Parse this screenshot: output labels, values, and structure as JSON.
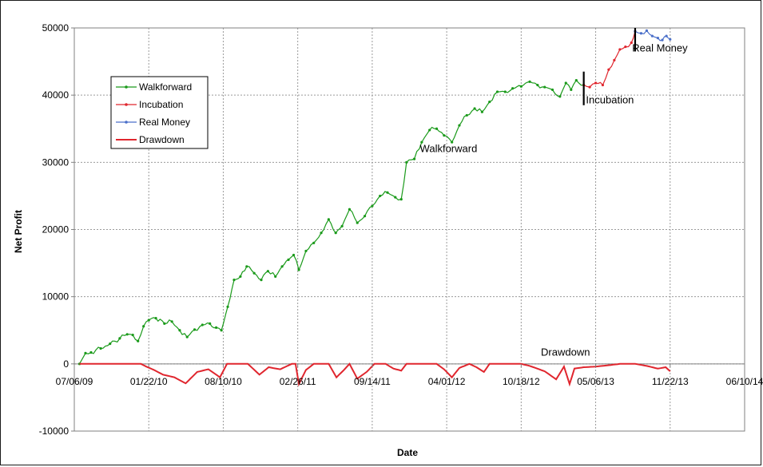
{
  "chart_data": {
    "type": "line",
    "xlabel": "Date",
    "ylabel": "Net Profit",
    "ylim": [
      -10000,
      50000
    ],
    "y_ticks": [
      -10000,
      0,
      10000,
      20000,
      30000,
      40000,
      50000
    ],
    "y_tick_labels": [
      "-10000",
      "0",
      "10000",
      "20000",
      "30000",
      "40000",
      "50000"
    ],
    "x_ticks": [
      "2009-07-06",
      "2010-01-22",
      "2010-08-10",
      "2011-02-26",
      "2011-09-14",
      "2012-04-01",
      "2012-10-18",
      "2013-05-06",
      "2013-11-22",
      "2014-06-10"
    ],
    "x_tick_labels": [
      "07/06/09",
      "01/22/10",
      "08/10/10",
      "02/26/11",
      "09/14/11",
      "04/01/12",
      "10/18/12",
      "05/06/13",
      "11/22/13",
      "06/10/14"
    ],
    "grid": true,
    "legend_position": "top-left",
    "legend": [
      "Walkforward",
      "Incubation",
      "Real Money",
      "Drawdown"
    ],
    "annotations": [
      {
        "text": "Walkforward",
        "x": "2012-01-20",
        "y": 31500
      },
      {
        "text": "Incubation",
        "x": "2013-04-10",
        "y": 38800
      },
      {
        "text": "Real Money",
        "x": "2013-08-12",
        "y": 46500
      },
      {
        "text": "Drawdown",
        "x": "2012-12-10",
        "y": 1200
      }
    ],
    "markers": [
      {
        "x": "2013-04-04",
        "y_from": 38500,
        "y_to": 43500
      },
      {
        "x": "2013-08-20",
        "y_from": 46500,
        "y_to": 50000
      }
    ],
    "series": [
      {
        "name": "Walkforward",
        "color": "#1a9a1a",
        "marker": true,
        "points": [
          [
            "2009-07-20",
            0
          ],
          [
            "2009-08-05",
            1600
          ],
          [
            "2009-08-20",
            1700
          ],
          [
            "2009-09-15",
            2300
          ],
          [
            "2009-10-10",
            3000
          ],
          [
            "2009-11-05",
            3800
          ],
          [
            "2009-11-25",
            4400
          ],
          [
            "2009-12-10",
            4300
          ],
          [
            "2009-12-24",
            3400
          ],
          [
            "2010-01-08",
            5600
          ],
          [
            "2010-01-22",
            6500
          ],
          [
            "2010-02-10",
            6800
          ],
          [
            "2010-03-05",
            6000
          ],
          [
            "2010-03-25",
            6300
          ],
          [
            "2010-04-15",
            5000
          ],
          [
            "2010-05-05",
            4000
          ],
          [
            "2010-05-25",
            5100
          ],
          [
            "2010-06-15",
            5800
          ],
          [
            "2010-07-05",
            6000
          ],
          [
            "2010-07-22",
            5400
          ],
          [
            "2010-08-05",
            5000
          ],
          [
            "2010-08-22",
            8500
          ],
          [
            "2010-09-08",
            12500
          ],
          [
            "2010-09-25",
            13000
          ],
          [
            "2010-10-12",
            14500
          ],
          [
            "2010-11-01",
            13500
          ],
          [
            "2010-11-20",
            12500
          ],
          [
            "2010-12-08",
            13800
          ],
          [
            "2010-12-28",
            13000
          ],
          [
            "2011-01-15",
            14500
          ],
          [
            "2011-02-01",
            15500
          ],
          [
            "2011-02-15",
            16200
          ],
          [
            "2011-03-01",
            14000
          ],
          [
            "2011-03-20",
            16800
          ],
          [
            "2011-04-10",
            18000
          ],
          [
            "2011-04-30",
            19500
          ],
          [
            "2011-05-20",
            21500
          ],
          [
            "2011-06-08",
            19500
          ],
          [
            "2011-06-25",
            20500
          ],
          [
            "2011-07-15",
            23000
          ],
          [
            "2011-08-05",
            21000
          ],
          [
            "2011-08-25",
            22000
          ],
          [
            "2011-09-14",
            23500
          ],
          [
            "2011-10-05",
            25000
          ],
          [
            "2011-10-25",
            25500
          ],
          [
            "2011-11-15",
            24800
          ],
          [
            "2011-12-01",
            24500
          ],
          [
            "2011-12-15",
            30000
          ],
          [
            "2012-01-05",
            30500
          ],
          [
            "2012-01-25",
            33000
          ],
          [
            "2012-02-15",
            34800
          ],
          [
            "2012-03-05",
            35000
          ],
          [
            "2012-03-25",
            34000
          ],
          [
            "2012-04-15",
            33000
          ],
          [
            "2012-05-05",
            35500
          ],
          [
            "2012-05-25",
            37000
          ],
          [
            "2012-06-15",
            38000
          ],
          [
            "2012-07-05",
            37500
          ],
          [
            "2012-07-25",
            39000
          ],
          [
            "2012-08-15",
            40500
          ],
          [
            "2012-09-05",
            40500
          ],
          [
            "2012-09-25",
            41000
          ],
          [
            "2012-10-18",
            41300
          ],
          [
            "2012-11-10",
            42000
          ],
          [
            "2012-12-01",
            41500
          ],
          [
            "2012-12-20",
            41200
          ],
          [
            "2013-01-10",
            40800
          ],
          [
            "2013-01-30",
            39800
          ],
          [
            "2013-02-15",
            41800
          ],
          [
            "2013-03-01",
            40800
          ],
          [
            "2013-03-15",
            42200
          ],
          [
            "2013-04-04",
            41500
          ]
        ]
      },
      {
        "name": "Incubation",
        "color": "#e0262e",
        "marker": true,
        "points": [
          [
            "2013-04-04",
            41500
          ],
          [
            "2013-04-20",
            41200
          ],
          [
            "2013-05-06",
            41800
          ],
          [
            "2013-05-25",
            41500
          ],
          [
            "2013-06-10",
            43800
          ],
          [
            "2013-06-25",
            45200
          ],
          [
            "2013-07-10",
            46800
          ],
          [
            "2013-07-25",
            47200
          ],
          [
            "2013-08-10",
            47800
          ],
          [
            "2013-08-20",
            49500
          ]
        ]
      },
      {
        "name": "Real Money",
        "color": "#4a6fc9",
        "marker": true,
        "points": [
          [
            "2013-08-20",
            49500
          ],
          [
            "2013-09-05",
            49200
          ],
          [
            "2013-09-20",
            49600
          ],
          [
            "2013-10-05",
            48800
          ],
          [
            "2013-10-20",
            48500
          ],
          [
            "2013-11-01",
            48200
          ],
          [
            "2013-11-12",
            48800
          ],
          [
            "2013-11-22",
            48300
          ]
        ]
      },
      {
        "name": "Drawdown",
        "color": "#e0262e",
        "marker": false,
        "points": [
          [
            "2009-07-20",
            0
          ],
          [
            "2010-01-01",
            0
          ],
          [
            "2010-01-15",
            -400
          ],
          [
            "2010-02-05",
            -900
          ],
          [
            "2010-03-01",
            -1600
          ],
          [
            "2010-04-01",
            -2000
          ],
          [
            "2010-05-01",
            -2900
          ],
          [
            "2010-06-01",
            -1200
          ],
          [
            "2010-07-01",
            -800
          ],
          [
            "2010-08-01",
            -2000
          ],
          [
            "2010-08-20",
            0
          ],
          [
            "2010-10-15",
            0
          ],
          [
            "2010-11-15",
            -1600
          ],
          [
            "2010-12-10",
            -500
          ],
          [
            "2011-01-10",
            -800
          ],
          [
            "2011-02-10",
            0
          ],
          [
            "2011-02-20",
            0
          ],
          [
            "2011-03-01",
            -3000
          ],
          [
            "2011-03-20",
            -900
          ],
          [
            "2011-04-10",
            0
          ],
          [
            "2011-05-20",
            0
          ],
          [
            "2011-06-10",
            -2000
          ],
          [
            "2011-06-30",
            -900
          ],
          [
            "2011-07-15",
            0
          ],
          [
            "2011-08-05",
            -2200
          ],
          [
            "2011-08-30",
            -1200
          ],
          [
            "2011-09-20",
            0
          ],
          [
            "2011-10-20",
            0
          ],
          [
            "2011-11-10",
            -700
          ],
          [
            "2011-12-01",
            -1000
          ],
          [
            "2011-12-15",
            0
          ],
          [
            "2012-03-05",
            0
          ],
          [
            "2012-03-25",
            -800
          ],
          [
            "2012-04-15",
            -2000
          ],
          [
            "2012-05-05",
            -600
          ],
          [
            "2012-06-01",
            0
          ],
          [
            "2012-06-20",
            -500
          ],
          [
            "2012-07-10",
            -1200
          ],
          [
            "2012-07-25",
            0
          ],
          [
            "2012-10-18",
            0
          ],
          [
            "2012-11-10",
            -300
          ],
          [
            "2012-12-20",
            -1100
          ],
          [
            "2013-01-20",
            -2300
          ],
          [
            "2013-02-10",
            -400
          ],
          [
            "2013-02-25",
            -3000
          ],
          [
            "2013-03-10",
            -700
          ],
          [
            "2013-04-04",
            -500
          ],
          [
            "2013-05-06",
            -400
          ],
          [
            "2013-06-10",
            -200
          ],
          [
            "2013-07-10",
            0
          ],
          [
            "2013-08-20",
            0
          ],
          [
            "2013-09-20",
            -300
          ],
          [
            "2013-10-20",
            -700
          ],
          [
            "2013-11-10",
            -500
          ],
          [
            "2013-11-22",
            -1100
          ]
        ]
      }
    ]
  }
}
